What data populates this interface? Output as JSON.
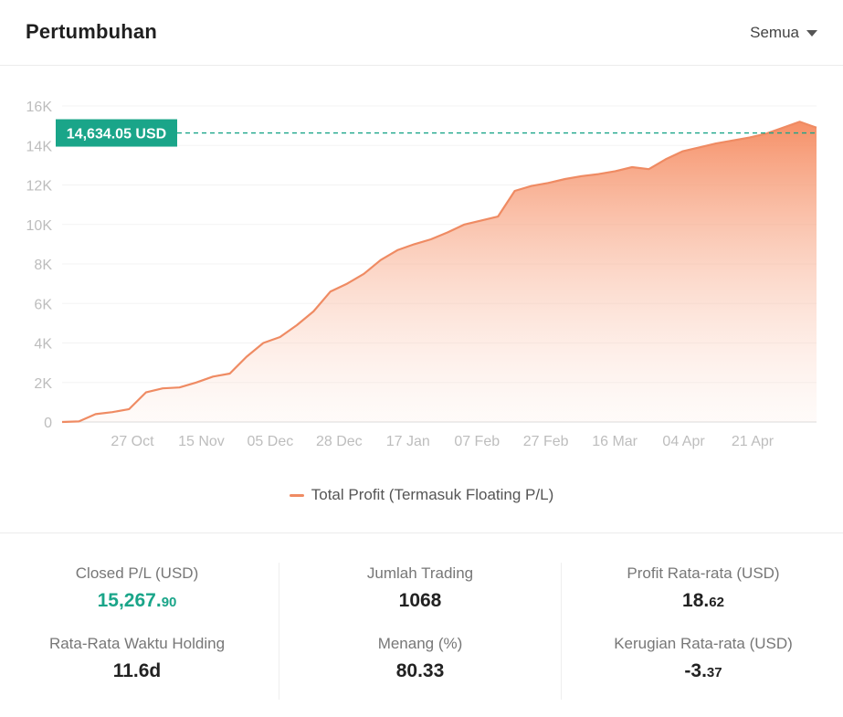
{
  "header": {
    "title": "Pertumbuhan",
    "filter_label": "Semua"
  },
  "chart_data": {
    "type": "area",
    "series": [
      {
        "name": "Total Profit (Termasuk Floating P/L)",
        "color": "#ef8b63",
        "values": [
          0,
          30,
          400,
          500,
          650,
          1500,
          1700,
          1750,
          2000,
          2300,
          2450,
          3300,
          4000,
          4300,
          4900,
          5600,
          6600,
          7000,
          7500,
          8200,
          8700,
          9000,
          9250,
          9600,
          10000,
          10200,
          10400,
          11700,
          11950,
          12100,
          12300,
          12450,
          12550,
          12700,
          12900,
          12800,
          13300,
          13700,
          13900,
          14100,
          14250,
          14400,
          14600,
          14900,
          15200,
          14900
        ]
      }
    ],
    "x_tick_labels": [
      "27 Oct",
      "15 Nov",
      "05 Dec",
      "28 Dec",
      "17 Jan",
      "07 Feb",
      "27 Feb",
      "16 Mar",
      "04 Apr",
      "21 Apr"
    ],
    "y_tick_labels": [
      "0",
      "2K",
      "4K",
      "6K",
      "8K",
      "10K",
      "12K",
      "14K",
      "16K"
    ],
    "ylim": [
      0,
      16000
    ],
    "reference_line": {
      "value": 14634.05,
      "label": "14,634.05 USD",
      "color": "#1aa589"
    },
    "legend_label": "Total Profit (Termasuk Floating P/L)",
    "grid": true
  },
  "stats": {
    "closed_pl_label": "Closed P/L (USD)",
    "closed_pl_int": "15,267.",
    "closed_pl_dec": "90",
    "trades_label": "Jumlah Trading",
    "trades_value": "1068",
    "avg_profit_label": "Profit Rata-rata (USD)",
    "avg_profit_int": "18.",
    "avg_profit_dec": "62",
    "holding_label": "Rata-Rata Waktu Holding",
    "holding_value": "11.6d",
    "win_label": "Menang (%)",
    "win_value": "80.33",
    "avg_loss_label": "Kerugian Rata-rata (USD)",
    "avg_loss_int": "-3.",
    "avg_loss_dec": "37"
  }
}
